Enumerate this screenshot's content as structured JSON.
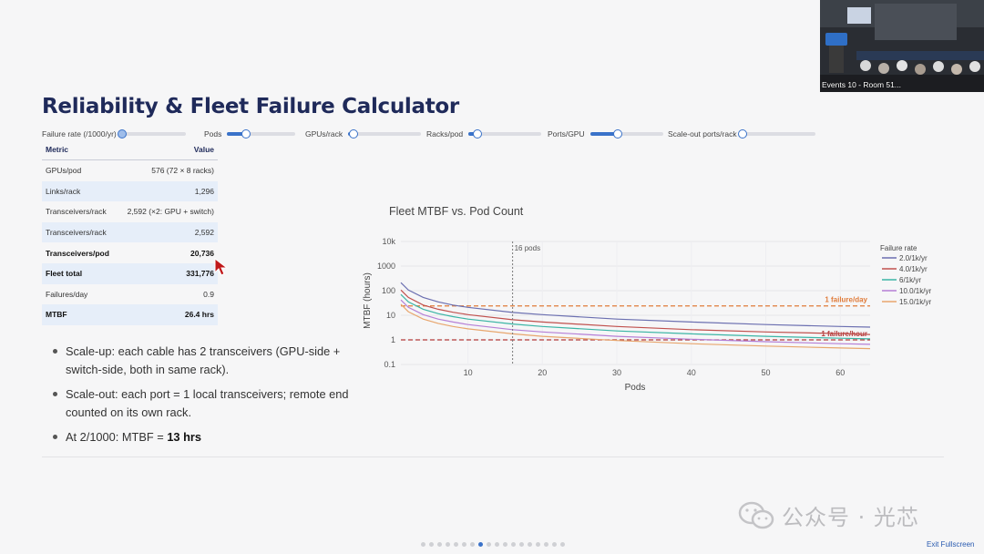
{
  "title": "Reliability & Fleet Failure Calculator",
  "sliders": [
    {
      "label": "Failure rate (/1000/yr)",
      "value": 0.0
    },
    {
      "label": "Pods",
      "value": 0.27
    },
    {
      "label": "GPUs/rack",
      "value": 0.08
    },
    {
      "label": "Racks/pod",
      "value": 0.12
    },
    {
      "label": "Ports/GPU",
      "value": 0.38
    },
    {
      "label": "Scale-out ports/rack",
      "value": 0.0
    }
  ],
  "table": {
    "headers": {
      "metric": "Metric",
      "value": "Value"
    },
    "rows": [
      {
        "metric": "GPUs/pod",
        "value": "576 (72 × 8 racks)"
      },
      {
        "metric": "Links/rack",
        "value": "1,296"
      },
      {
        "metric": "Transceivers/rack",
        "value": "2,592 (×2: GPU + switch)"
      },
      {
        "metric": "Transceivers/rack",
        "value": "2,592"
      },
      {
        "metric": "Transceivers/pod",
        "value": "20,736"
      },
      {
        "metric": "Fleet total",
        "value": "331,776"
      },
      {
        "metric": "Failures/day",
        "value": "0.9"
      },
      {
        "metric": "MTBF",
        "value": "26.4 hrs"
      }
    ]
  },
  "bullets": {
    "b1": "Scale-up: each cable has 2 transceivers (GPU-side + switch-side, both in same rack).",
    "b2": "Scale-out: each port = 1 local transceivers; remote end counted on its own rack.",
    "b3_prefix": "At 2/1000: MTBF = ",
    "b3_bold": "13 hrs"
  },
  "chart_data": {
    "type": "line",
    "title": "Fleet MTBF vs. Pod Count",
    "xlabel": "Pods",
    "ylabel": "MTBF (hours)",
    "y_scale": "log",
    "xlim": [
      1,
      64
    ],
    "ylim": [
      0.1,
      10000
    ],
    "x_ticks": [
      10,
      20,
      30,
      40,
      50,
      60
    ],
    "y_ticks": [
      {
        "value": 0.1,
        "label": "0.1"
      },
      {
        "value": 1,
        "label": "1"
      },
      {
        "value": 10,
        "label": "10"
      },
      {
        "value": 100,
        "label": "100"
      },
      {
        "value": 1000,
        "label": "1000"
      },
      {
        "value": 10000,
        "label": "10k"
      }
    ],
    "grid": true,
    "legend_title": "Failure rate",
    "legend_position": "right",
    "x": [
      1,
      2,
      4,
      6,
      8,
      10,
      16,
      20,
      30,
      40,
      50,
      60,
      64
    ],
    "series": [
      {
        "name": "2.0/1k/yr",
        "color": "#6b6fb0",
        "values": [
          211,
          106,
          53,
          35,
          26,
          21,
          13,
          10.6,
          7.0,
          5.3,
          4.2,
          3.5,
          3.3
        ]
      },
      {
        "name": "4.0/1k/yr",
        "color": "#c0504d",
        "values": [
          106,
          53,
          26,
          17.6,
          13.2,
          10.6,
          6.6,
          5.3,
          3.5,
          2.6,
          2.1,
          1.8,
          1.65
        ]
      },
      {
        "name": "6/1k/yr",
        "color": "#3bb5a5",
        "values": [
          70,
          35,
          17.6,
          11.7,
          8.8,
          7.0,
          4.4,
          3.5,
          2.3,
          1.76,
          1.4,
          1.17,
          1.1
        ]
      },
      {
        "name": "10.0/1k/yr",
        "color": "#b57fd6",
        "values": [
          42,
          21,
          10.6,
          7.0,
          5.3,
          4.2,
          2.6,
          2.1,
          1.4,
          1.06,
          0.84,
          0.7,
          0.66
        ]
      },
      {
        "name": "15.0/1k/yr",
        "color": "#e8a66d",
        "values": [
          28,
          14,
          7.0,
          4.7,
          3.5,
          2.8,
          1.76,
          1.4,
          0.94,
          0.7,
          0.56,
          0.47,
          0.44
        ]
      }
    ],
    "reference_lines": [
      {
        "y": 24,
        "label": "1 failure/day",
        "color": "#e07b39"
      },
      {
        "y": 1,
        "label": "1 failure/hour",
        "color": "#b23a3a"
      }
    ],
    "marker_line": {
      "x": 16,
      "label": "16 pods"
    }
  },
  "camera": {
    "caption": "Events 10 - Room 51..."
  },
  "watermark": {
    "text": "公众号 · 光芯"
  },
  "pagination": {
    "count": 18,
    "active": 7
  },
  "exit_label": "Exit Fullscreen"
}
